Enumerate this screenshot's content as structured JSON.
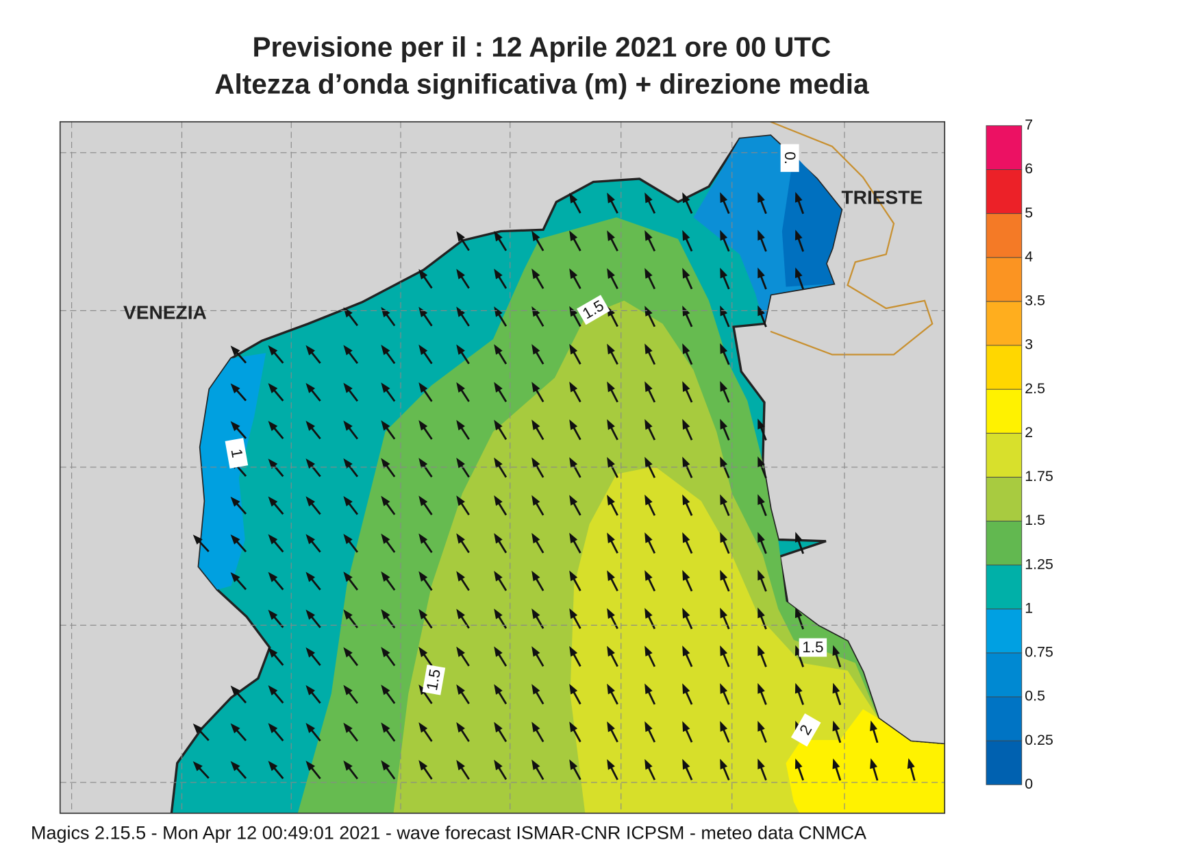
{
  "title": [
    "Previsione per il  :  12   Aprile  2021   ore 00 UTC",
    "Altezza d’onda significativa (m) + direzione media"
  ],
  "places": [
    "VENEZIA",
    "TRIESTE"
  ],
  "contour_labels": [
    "0.",
    "1.5",
    "1",
    "1.5",
    "1.5",
    "2"
  ],
  "legend": {
    "levels": [
      0,
      0.25,
      0.5,
      0.75,
      1,
      1.25,
      1.5,
      1.75,
      2,
      2.5,
      3,
      3.5,
      4,
      5,
      6,
      7
    ],
    "colors": [
      "#0061b0",
      "#0074c4",
      "#0089d2",
      "#00a0e2",
      "#00b0a8",
      "#62b850",
      "#a8cb40",
      "#d8e02c",
      "#fff200",
      "#ffd700",
      "#ffae1e",
      "#fb9422",
      "#f47a26",
      "#ec2128",
      "#ec1163"
    ]
  },
  "footer": "Magics 2.15.5 - Mon Apr 12 00:49:01 2021 - wave forecast  ISMAR-CNR  ICPSM - meteo data   CNMCA"
}
